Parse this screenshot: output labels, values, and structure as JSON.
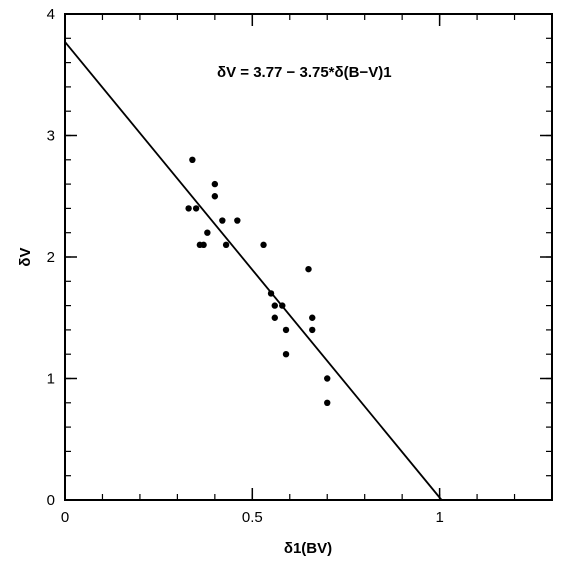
{
  "chart_data": {
    "type": "scatter",
    "title": "",
    "xlabel": "δ1(BV)",
    "ylabel": "δV",
    "xlim": [
      0,
      1.3
    ],
    "ylim": [
      0,
      4
    ],
    "x_ticks": [
      "0",
      "0.5",
      "1"
    ],
    "y_ticks": [
      "0",
      "1",
      "2",
      "3",
      "4"
    ],
    "grid": false,
    "annotation": "δV = 3.77 − 3.75*δ(B−V)1",
    "fit_line": {
      "intercept": 3.77,
      "slope": -3.75
    },
    "points": [
      {
        "x": 0.33,
        "y": 2.4
      },
      {
        "x": 0.34,
        "y": 2.8
      },
      {
        "x": 0.35,
        "y": 2.4
      },
      {
        "x": 0.36,
        "y": 2.1
      },
      {
        "x": 0.37,
        "y": 2.1
      },
      {
        "x": 0.38,
        "y": 2.2
      },
      {
        "x": 0.4,
        "y": 2.6
      },
      {
        "x": 0.4,
        "y": 2.5
      },
      {
        "x": 0.42,
        "y": 2.3
      },
      {
        "x": 0.43,
        "y": 2.1
      },
      {
        "x": 0.46,
        "y": 2.3
      },
      {
        "x": 0.53,
        "y": 2.1
      },
      {
        "x": 0.55,
        "y": 1.7
      },
      {
        "x": 0.56,
        "y": 1.6
      },
      {
        "x": 0.56,
        "y": 1.5
      },
      {
        "x": 0.58,
        "y": 1.6
      },
      {
        "x": 0.59,
        "y": 1.4
      },
      {
        "x": 0.59,
        "y": 1.2
      },
      {
        "x": 0.65,
        "y": 1.9
      },
      {
        "x": 0.66,
        "y": 1.5
      },
      {
        "x": 0.66,
        "y": 1.4
      },
      {
        "x": 0.7,
        "y": 1.0
      },
      {
        "x": 0.7,
        "y": 0.8
      }
    ]
  }
}
